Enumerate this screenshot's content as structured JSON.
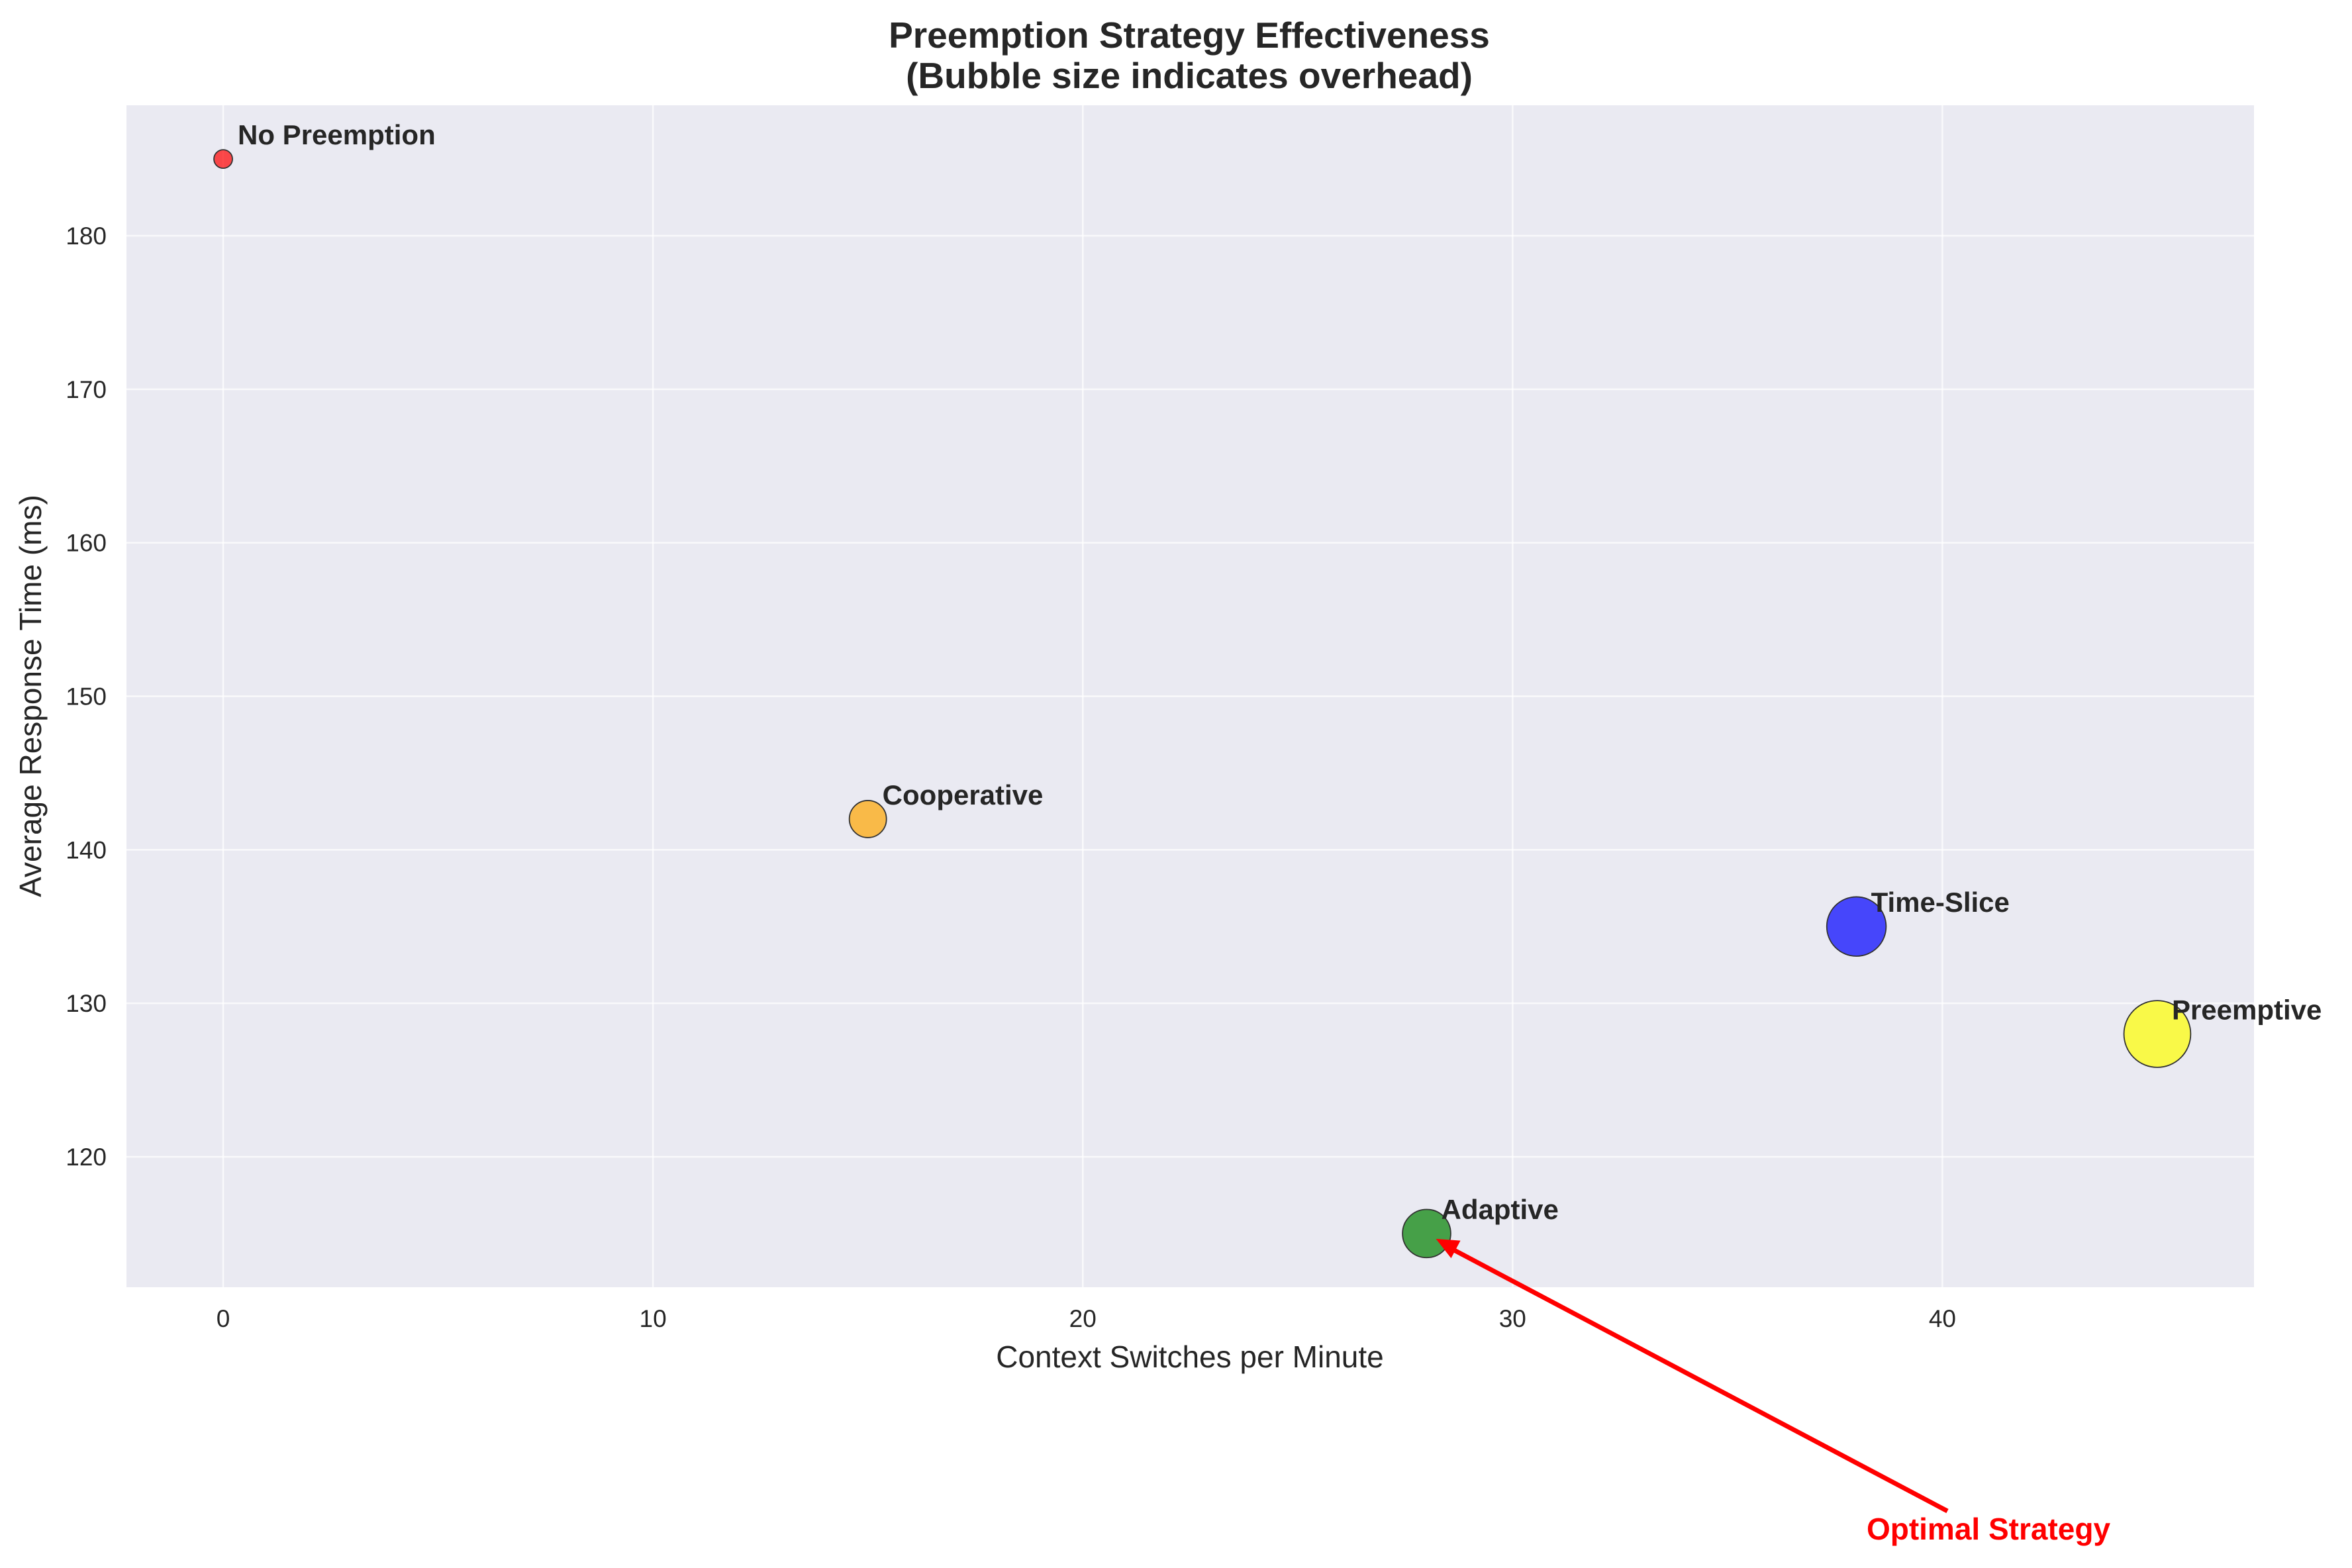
{
  "chart_data": {
    "type": "scatter",
    "title_line1": "Preemption Strategy Effectiveness",
    "title_line2": "(Bubble size indicates overhead)",
    "xlabel": "Context Switches per Minute",
    "ylabel": "Average Response Time (ms)",
    "xlim": [
      -2.25,
      47.25
    ],
    "ylim": [
      111.5,
      188.5
    ],
    "xticks": [
      0,
      10,
      20,
      30,
      40
    ],
    "yticks": [
      120,
      130,
      140,
      150,
      160,
      170,
      180
    ],
    "grid": true,
    "background_color": "#eaeaf2",
    "points": [
      {
        "label": "No Preemption",
        "x": 0,
        "y": 185,
        "size": 1.0,
        "color": "#ff0000"
      },
      {
        "label": "Cooperative",
        "x": 15,
        "y": 142,
        "size": 2.0,
        "color": "#ffa500"
      },
      {
        "label": "Time-Slice",
        "x": 38,
        "y": 135,
        "size": 3.2,
        "color": "#0000ff"
      },
      {
        "label": "Preemptive",
        "x": 45,
        "y": 128,
        "size": 3.6,
        "color": "#ffff00"
      },
      {
        "label": "Adaptive",
        "x": 28,
        "y": 115,
        "size": 2.6,
        "color": "#008000"
      }
    ],
    "annotation": {
      "text": "Optimal Strategy",
      "color": "#ff0000",
      "target": {
        "x": 28,
        "y": 115
      }
    }
  }
}
